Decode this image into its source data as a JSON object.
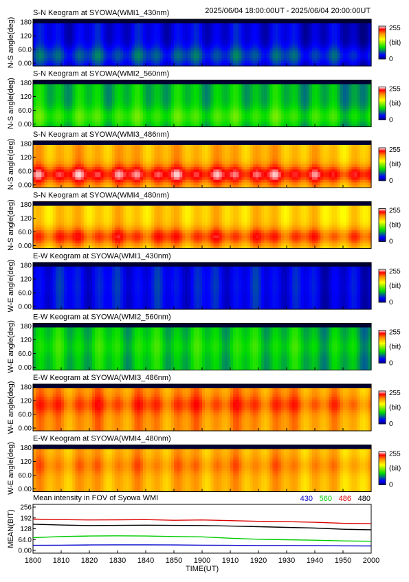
{
  "header": {
    "time_range": "2025/06/04 18:00:00UT - 2025/06/04 20:00:00UT"
  },
  "colorbar": {
    "max_label": "255",
    "unit_label": "(bit)",
    "min_label": "0"
  },
  "x_axis": {
    "label": "TIME(UT)",
    "ticks": [
      "1800",
      "1810",
      "1820",
      "1830",
      "1840",
      "1850",
      "1900",
      "1910",
      "1920",
      "1930",
      "1940",
      "1950",
      "2000"
    ]
  },
  "keogram_y_ticks": [
    "180",
    "120",
    "60.0",
    "0.00"
  ],
  "chart_data": [
    {
      "type": "heatmap",
      "title": "S-N Keogram at SYOWA(WMI1_430nm)",
      "ylabel": "N-S angle(deg)",
      "ylim": [
        0,
        180
      ],
      "zlim": [
        0,
        255
      ],
      "base_level": 0.1,
      "aurora_level": 0.2,
      "aurora_center_deg": 40
    },
    {
      "type": "heatmap",
      "title": "S-N Keogram at SYOWA(WMI2_560nm)",
      "ylabel": "N-S angle(deg)",
      "ylim": [
        0,
        180
      ],
      "zlim": [
        0,
        255
      ],
      "base_level": 0.32,
      "aurora_level": 0.4,
      "aurora_center_deg": 40
    },
    {
      "type": "heatmap",
      "title": "S-N Keogram at SYOWA(WMI3_486nm)",
      "ylabel": "N-S angle(deg)",
      "ylim": [
        0,
        180
      ],
      "zlim": [
        0,
        255
      ],
      "base_level": 0.72,
      "aurora_level": 0.92,
      "aurora_center_deg": 50
    },
    {
      "type": "heatmap",
      "title": "S-N Keogram at SYOWA(WMI4_480nm)",
      "ylabel": "N-S angle(deg)",
      "ylim": [
        0,
        180
      ],
      "zlim": [
        0,
        255
      ],
      "base_level": 0.68,
      "aurora_level": 0.85,
      "aurora_center_deg": 45
    },
    {
      "type": "heatmap",
      "title": "E-W Keogram at SYOWA(WMI1_430nm)",
      "ylabel": "W-E angle(deg)",
      "ylim": [
        0,
        180
      ],
      "zlim": [
        0,
        255
      ],
      "base_level": 0.12,
      "aurora_level": 0.13,
      "aurora_center_deg": 90
    },
    {
      "type": "heatmap",
      "title": "E-W Keogram at SYOWA(WMI2_560nm)",
      "ylabel": "W-E angle(deg)",
      "ylim": [
        0,
        180
      ],
      "zlim": [
        0,
        255
      ],
      "base_level": 0.33,
      "aurora_level": 0.36,
      "aurora_center_deg": 90
    },
    {
      "type": "heatmap",
      "title": "E-W Keogram at SYOWA(WMI3_486nm)",
      "ylabel": "W-E angle(deg)",
      "ylim": [
        0,
        180
      ],
      "zlim": [
        0,
        255
      ],
      "base_level": 0.76,
      "aurora_level": 0.84,
      "aurora_center_deg": 100
    },
    {
      "type": "heatmap",
      "title": "E-W Keogram at SYOWA(WMI4_480nm)",
      "ylabel": "W-E angle(deg)",
      "ylim": [
        0,
        180
      ],
      "zlim": [
        0,
        255
      ],
      "base_level": 0.72,
      "aurora_level": 0.78,
      "aurora_center_deg": 100
    },
    {
      "type": "line",
      "title": "Mean intensity in FOV of Syowa WMI",
      "xlabel": "TIME(UT)",
      "ylabel": "MEAN(BIT)",
      "ylim": [
        0,
        256
      ],
      "xlim": [
        0,
        120
      ],
      "y_ticks": [
        "256",
        "192",
        "128",
        "64.0",
        "0.00"
      ],
      "legend_position": "top-right",
      "series": [
        {
          "name": "430",
          "color": "#0000cc",
          "x": [
            0,
            10,
            20,
            30,
            40,
            50,
            60,
            70,
            80,
            90,
            100,
            110,
            120
          ],
          "values": [
            30,
            31,
            32,
            33,
            33,
            32,
            31,
            30,
            29,
            29,
            28,
            27,
            26
          ]
        },
        {
          "name": "560",
          "color": "#00cc00",
          "x": [
            0,
            10,
            20,
            30,
            40,
            50,
            60,
            70,
            80,
            90,
            100,
            110,
            120
          ],
          "values": [
            75,
            82,
            85,
            86,
            85,
            82,
            80,
            72,
            66,
            63,
            60,
            56,
            54
          ]
        },
        {
          "name": "486",
          "color": "#dd0000",
          "x": [
            0,
            10,
            20,
            30,
            40,
            50,
            60,
            70,
            80,
            90,
            100,
            110,
            120
          ],
          "values": [
            185,
            182,
            180,
            181,
            182,
            178,
            180,
            176,
            172,
            170,
            166,
            160,
            158
          ]
        },
        {
          "name": "480",
          "color": "#000000",
          "x": [
            0,
            10,
            20,
            30,
            40,
            50,
            60,
            70,
            80,
            90,
            100,
            110,
            120
          ],
          "values": [
            155,
            150,
            147,
            148,
            149,
            148,
            147,
            144,
            140,
            136,
            132,
            125,
            122
          ]
        }
      ]
    }
  ]
}
